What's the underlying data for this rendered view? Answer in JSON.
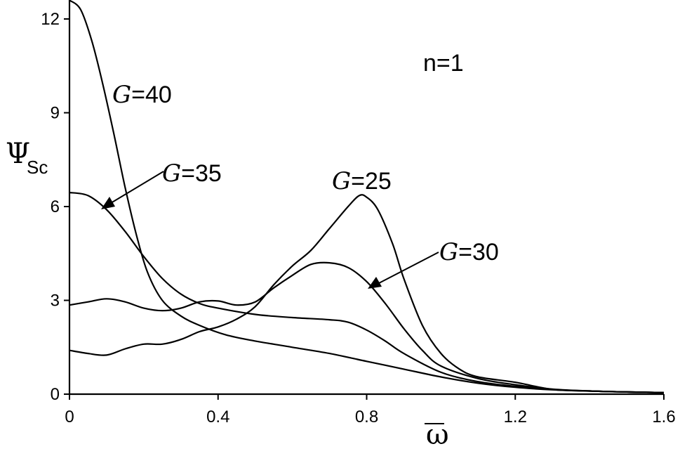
{
  "chart_data": {
    "type": "line",
    "title": "",
    "annotation": "n=1",
    "xlabel": "ω",
    "ylabel_main": "Ψ",
    "ylabel_sub": "Sc",
    "xlim": [
      0,
      1.6
    ],
    "ylim": [
      0,
      12.5
    ],
    "xticks": [
      "0",
      "0.4",
      "0.8",
      "1.2",
      "1.6"
    ],
    "yticks": [
      "0",
      "3",
      "6",
      "9",
      "12"
    ],
    "xtick_values": [
      0,
      0.4,
      0.8,
      1.2,
      1.6
    ],
    "ytick_values": [
      0,
      3,
      6,
      9,
      12
    ],
    "grid": false,
    "series": [
      {
        "name": "=40",
        "prefix": "G",
        "points": [
          [
            0,
            12.6
          ],
          [
            0.03,
            12.3
          ],
          [
            0.06,
            11.3
          ],
          [
            0.09,
            9.9
          ],
          [
            0.12,
            8.3
          ],
          [
            0.15,
            6.6
          ],
          [
            0.18,
            5.1
          ],
          [
            0.21,
            3.9
          ],
          [
            0.25,
            3.0
          ],
          [
            0.3,
            2.5
          ],
          [
            0.35,
            2.2
          ],
          [
            0.42,
            1.9
          ],
          [
            0.5,
            1.7
          ],
          [
            0.6,
            1.5
          ],
          [
            0.7,
            1.3
          ],
          [
            0.8,
            1.05
          ],
          [
            0.9,
            0.8
          ],
          [
            1.0,
            0.55
          ],
          [
            1.1,
            0.35
          ],
          [
            1.2,
            0.22
          ],
          [
            1.3,
            0.14
          ],
          [
            1.4,
            0.1
          ],
          [
            1.5,
            0.07
          ],
          [
            1.6,
            0.05
          ]
        ]
      },
      {
        "name": "=35",
        "prefix": "G",
        "points": [
          [
            0,
            6.45
          ],
          [
            0.05,
            6.35
          ],
          [
            0.1,
            5.9
          ],
          [
            0.15,
            5.2
          ],
          [
            0.2,
            4.4
          ],
          [
            0.25,
            3.7
          ],
          [
            0.3,
            3.2
          ],
          [
            0.35,
            2.9
          ],
          [
            0.4,
            2.75
          ],
          [
            0.5,
            2.55
          ],
          [
            0.6,
            2.45
          ],
          [
            0.7,
            2.38
          ],
          [
            0.75,
            2.3
          ],
          [
            0.8,
            2.05
          ],
          [
            0.85,
            1.7
          ],
          [
            0.9,
            1.3
          ],
          [
            1.0,
            0.7
          ],
          [
            1.1,
            0.4
          ],
          [
            1.2,
            0.25
          ],
          [
            1.3,
            0.15
          ],
          [
            1.4,
            0.1
          ],
          [
            1.5,
            0.07
          ],
          [
            1.6,
            0.05
          ]
        ]
      },
      {
        "name": "=30",
        "prefix": "G",
        "points": [
          [
            0,
            2.85
          ],
          [
            0.05,
            2.95
          ],
          [
            0.1,
            3.05
          ],
          [
            0.15,
            2.95
          ],
          [
            0.2,
            2.75
          ],
          [
            0.25,
            2.67
          ],
          [
            0.3,
            2.75
          ],
          [
            0.35,
            2.95
          ],
          [
            0.4,
            2.98
          ],
          [
            0.45,
            2.85
          ],
          [
            0.5,
            2.95
          ],
          [
            0.55,
            3.4
          ],
          [
            0.6,
            3.8
          ],
          [
            0.65,
            4.15
          ],
          [
            0.7,
            4.2
          ],
          [
            0.75,
            4.05
          ],
          [
            0.8,
            3.6
          ],
          [
            0.85,
            2.9
          ],
          [
            0.9,
            2.1
          ],
          [
            0.95,
            1.4
          ],
          [
            1.0,
            0.9
          ],
          [
            1.1,
            0.5
          ],
          [
            1.2,
            0.3
          ],
          [
            1.3,
            0.16
          ],
          [
            1.4,
            0.1
          ],
          [
            1.5,
            0.07
          ],
          [
            1.6,
            0.05
          ]
        ]
      },
      {
        "name": "=25",
        "prefix": "G",
        "points": [
          [
            0,
            1.4
          ],
          [
            0.05,
            1.3
          ],
          [
            0.1,
            1.25
          ],
          [
            0.15,
            1.45
          ],
          [
            0.2,
            1.6
          ],
          [
            0.25,
            1.6
          ],
          [
            0.3,
            1.75
          ],
          [
            0.35,
            2.0
          ],
          [
            0.4,
            2.15
          ],
          [
            0.45,
            2.4
          ],
          [
            0.5,
            2.8
          ],
          [
            0.55,
            3.5
          ],
          [
            0.6,
            4.1
          ],
          [
            0.65,
            4.6
          ],
          [
            0.7,
            5.3
          ],
          [
            0.75,
            6.0
          ],
          [
            0.78,
            6.35
          ],
          [
            0.8,
            6.3
          ],
          [
            0.83,
            5.9
          ],
          [
            0.87,
            4.8
          ],
          [
            0.9,
            3.7
          ],
          [
            0.95,
            2.2
          ],
          [
            1.0,
            1.3
          ],
          [
            1.05,
            0.8
          ],
          [
            1.1,
            0.55
          ],
          [
            1.2,
            0.38
          ],
          [
            1.3,
            0.15
          ],
          [
            1.4,
            0.1
          ],
          [
            1.5,
            0.07
          ],
          [
            1.6,
            0.05
          ]
        ]
      }
    ]
  }
}
